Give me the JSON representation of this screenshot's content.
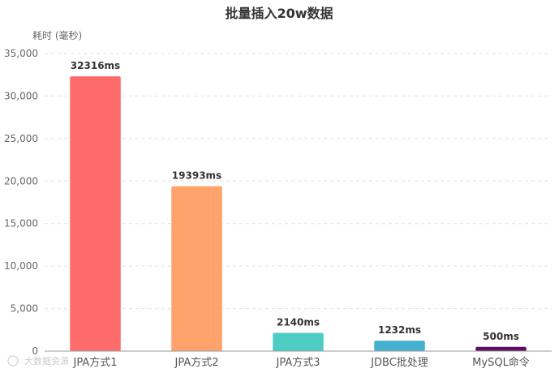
{
  "chart_data": {
    "type": "bar",
    "title": "批量插入20w数据",
    "ylabel": "耗时 (毫秒)",
    "xlabel": "",
    "ylim": [
      0,
      35000
    ],
    "yticks": [
      0,
      5000,
      10000,
      15000,
      20000,
      25000,
      30000,
      35000
    ],
    "ytick_labels": [
      "0",
      "5,000",
      "10,000",
      "15,000",
      "20,000",
      "25,000",
      "30,000",
      "35,000"
    ],
    "grid": true,
    "categories": [
      "JPA方式1",
      "JPA方式2",
      "JPA方式3",
      "JDBC批处理",
      "MySQL命令"
    ],
    "values": [
      32316,
      19393,
      2140,
      1232,
      500
    ],
    "data_labels": [
      "32316ms",
      "19393ms",
      "2140ms",
      "1232ms",
      "500ms"
    ],
    "colors": [
      "#ff6b6b",
      "#ffa26b",
      "#4ecdc4",
      "#45b1d0",
      "#5c0f5e"
    ]
  },
  "watermark": "大数据资源"
}
